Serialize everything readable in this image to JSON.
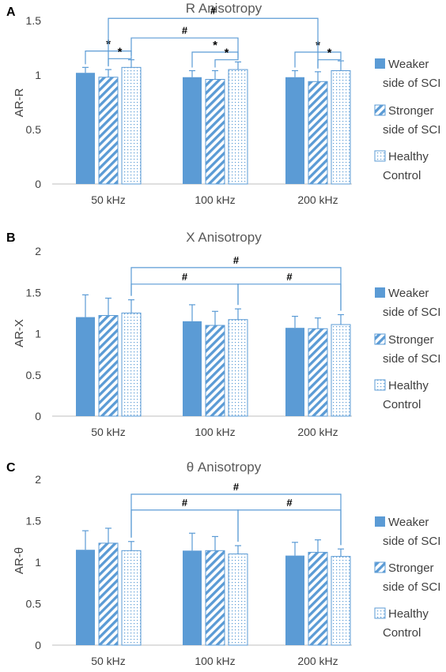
{
  "colors": {
    "bar": "#5b9bd5",
    "bracket": "#5b9bd5",
    "axis": "#bfbfbf",
    "text": "#404040",
    "panel_title": "#595959",
    "panel_letter": "#000000"
  },
  "legend": {
    "entries": [
      {
        "pattern": "solid",
        "lines": [
          "Weaker",
          "side of SCI"
        ]
      },
      {
        "pattern": "hatch",
        "lines": [
          "Stronger",
          "side of SCI"
        ]
      },
      {
        "pattern": "dots",
        "lines": [
          "Healthy",
          "Control"
        ]
      }
    ]
  },
  "chart_data": [
    {
      "letter": "A",
      "type": "bar",
      "title": "R Anisotropy",
      "ylabel": "AR-R",
      "categories": [
        "50 kHz",
        "100 kHz",
        "200 kHz"
      ],
      "ylim": [
        0,
        1.5
      ],
      "yticks": [
        "0",
        "0.5",
        "1",
        "1.5"
      ],
      "ytick_values": [
        0,
        0.5,
        1,
        1.5
      ],
      "series": [
        {
          "pattern": "solid",
          "values": [
            1.02,
            0.98,
            0.98
          ],
          "errors": [
            0.05,
            0.06,
            0.06
          ]
        },
        {
          "pattern": "hatch",
          "values": [
            0.98,
            0.96,
            0.94
          ],
          "errors": [
            0.07,
            0.08,
            0.09
          ]
        },
        {
          "pattern": "dots",
          "values": [
            1.07,
            1.05,
            1.04
          ],
          "errors": [
            0.07,
            0.07,
            0.09
          ]
        }
      ],
      "annotations": [
        {
          "label": "*",
          "kind": "within",
          "group": 0,
          "from": 0,
          "to": 2,
          "y": 1.22
        },
        {
          "label": "*",
          "kind": "within",
          "group": 0,
          "from": 1,
          "to": 2,
          "y": 1.15
        },
        {
          "label": "*",
          "kind": "within",
          "group": 1,
          "from": 0,
          "to": 2,
          "y": 1.21
        },
        {
          "label": "*",
          "kind": "within",
          "group": 1,
          "from": 1,
          "to": 2,
          "y": 1.14
        },
        {
          "label": "*",
          "kind": "within",
          "group": 2,
          "from": 0,
          "to": 2,
          "y": 1.21
        },
        {
          "label": "*",
          "kind": "within",
          "group": 2,
          "from": 1,
          "to": 2,
          "y": 1.14
        },
        {
          "label": "#",
          "kind": "across",
          "fromGroup": 0,
          "toGroup": 1,
          "series": 2,
          "y": 1.34
        },
        {
          "label": "#",
          "kind": "across",
          "fromGroup": 0,
          "toGroup": 2,
          "series": 1,
          "y": 1.52
        }
      ]
    },
    {
      "letter": "B",
      "type": "bar",
      "title": "X Anisotropy",
      "ylabel": "AR-X",
      "categories": [
        "50 kHz",
        "100 kHz",
        "200 kHz"
      ],
      "ylim": [
        0,
        2
      ],
      "yticks": [
        "0",
        "0.5",
        "1",
        "1.5",
        "2"
      ],
      "ytick_values": [
        0,
        0.5,
        1,
        1.5,
        2
      ],
      "series": [
        {
          "pattern": "solid",
          "values": [
            1.2,
            1.15,
            1.07
          ],
          "errors": [
            0.27,
            0.2,
            0.14
          ]
        },
        {
          "pattern": "hatch",
          "values": [
            1.22,
            1.1,
            1.06
          ],
          "errors": [
            0.21,
            0.17,
            0.13
          ]
        },
        {
          "pattern": "dots",
          "values": [
            1.25,
            1.17,
            1.11
          ],
          "errors": [
            0.16,
            0.13,
            0.12
          ]
        }
      ],
      "annotations": [
        {
          "label": "#",
          "kind": "across",
          "fromGroup": 0,
          "toGroup": 1,
          "series": 2,
          "y": 1.6
        },
        {
          "label": "#",
          "kind": "across",
          "fromGroup": 1,
          "toGroup": 2,
          "series": 2,
          "y": 1.6
        },
        {
          "label": "#",
          "kind": "across",
          "fromGroup": 0,
          "toGroup": 2,
          "series": 2,
          "y": 1.8
        }
      ]
    },
    {
      "letter": "C",
      "type": "bar",
      "title": "θ Anisotropy",
      "ylabel": "AR-θ",
      "categories": [
        "50 kHz",
        "100 kHz",
        "200 kHz"
      ],
      "ylim": [
        0,
        2
      ],
      "yticks": [
        "0",
        "0.5",
        "1",
        "1.5",
        "2"
      ],
      "ytick_values": [
        0,
        0.5,
        1,
        1.5,
        2
      ],
      "series": [
        {
          "pattern": "solid",
          "values": [
            1.15,
            1.14,
            1.08
          ],
          "errors": [
            0.23,
            0.21,
            0.16
          ]
        },
        {
          "pattern": "hatch",
          "values": [
            1.23,
            1.14,
            1.12
          ],
          "errors": [
            0.18,
            0.17,
            0.15
          ]
        },
        {
          "pattern": "dots",
          "values": [
            1.14,
            1.1,
            1.07
          ],
          "errors": [
            0.11,
            0.1,
            0.09
          ]
        }
      ],
      "annotations": [
        {
          "label": "#",
          "kind": "across",
          "fromGroup": 0,
          "toGroup": 1,
          "series": 2,
          "y": 1.63
        },
        {
          "label": "#",
          "kind": "across",
          "fromGroup": 1,
          "toGroup": 2,
          "series": 2,
          "y": 1.63
        },
        {
          "label": "#",
          "kind": "across",
          "fromGroup": 0,
          "toGroup": 2,
          "series": 2,
          "y": 1.82
        }
      ]
    }
  ]
}
